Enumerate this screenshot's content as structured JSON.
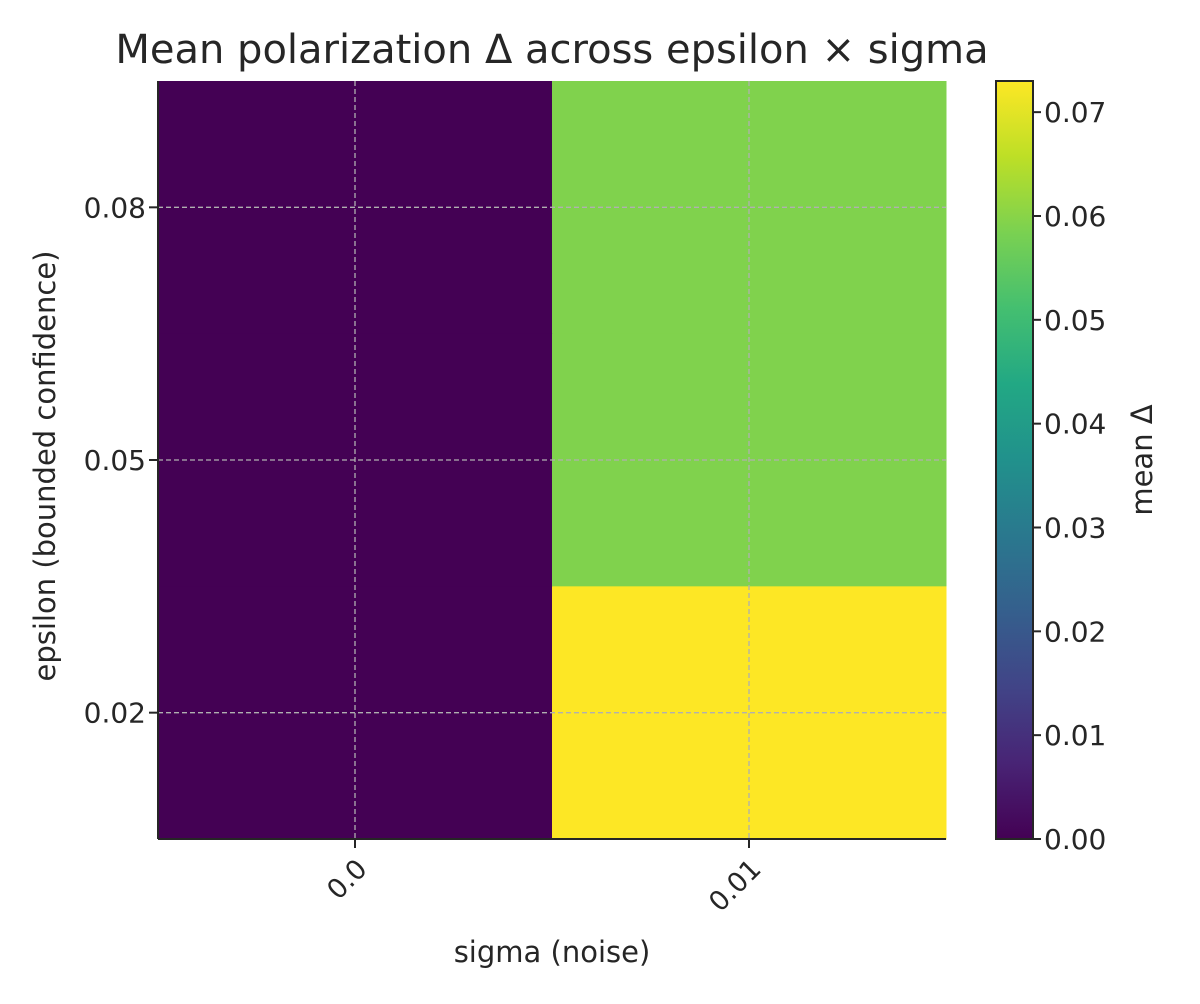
{
  "chart_data": {
    "type": "heatmap",
    "title": "Mean polarization Δ across epsilon × sigma",
    "xlabel": "sigma (noise)",
    "ylabel": "epsilon (bounded confidence)",
    "x_categories": [
      "0.0",
      "0.01"
    ],
    "y_categories": [
      "0.08",
      "0.05",
      "0.02"
    ],
    "values": [
      [
        0.0,
        0.059
      ],
      [
        0.0,
        0.059
      ],
      [
        0.0,
        0.073
      ]
    ],
    "grid": true,
    "colorbar": {
      "label": "mean Δ",
      "colormap": "viridis",
      "range": [
        0.0,
        0.073
      ],
      "ticks": [
        0.0,
        0.01,
        0.02,
        0.03,
        0.04,
        0.05,
        0.06,
        0.07
      ],
      "tick_labels": [
        "0.00",
        "0.01",
        "0.02",
        "0.03",
        "0.04",
        "0.05",
        "0.06",
        "0.07"
      ]
    }
  }
}
